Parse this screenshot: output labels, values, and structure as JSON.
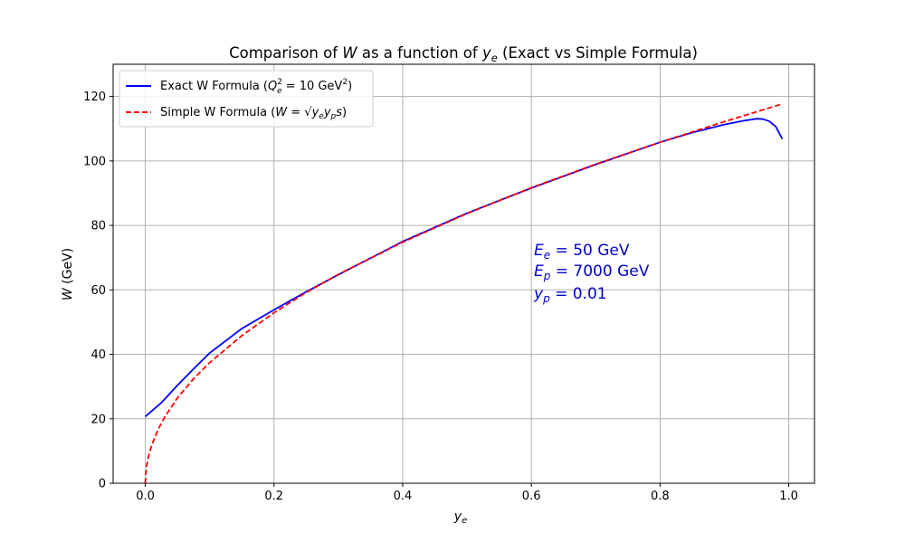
{
  "chart_data": {
    "type": "line",
    "title": {
      "prefix": "Comparison of ",
      "w": "W",
      "middle": " as a function of ",
      "y": "y",
      "ysub": "e",
      "suffix": " (Exact vs Simple Formula)"
    },
    "xlabel": {
      "base": "y",
      "sub": "e"
    },
    "ylabel": {
      "italic": "W",
      "rest": " (GeV)"
    },
    "xlim": [
      -0.05,
      1.04
    ],
    "ylim": [
      0,
      130
    ],
    "x_ticks": [
      0.0,
      0.2,
      0.4,
      0.6,
      0.8,
      1.0
    ],
    "x_tick_labels": [
      "0.0",
      "0.2",
      "0.4",
      "0.6",
      "0.8",
      "1.0"
    ],
    "y_ticks": [
      0,
      20,
      40,
      60,
      80,
      100,
      120
    ],
    "y_tick_labels": [
      "0",
      "20",
      "40",
      "60",
      "80",
      "100",
      "120"
    ],
    "grid": true,
    "legend_position": "top-left",
    "legend": [
      {
        "prefix": "Exact W Formula (",
        "var": "Q",
        "sup": "2",
        "sub": "e",
        "rest": " = 10 GeV",
        "unit_sup": "2",
        "close": ")"
      },
      {
        "prefix": "Simple W Formula (",
        "var": "W",
        "eq": " = √",
        "radicand": "y",
        "sub1": "e",
        "y2": "y",
        "sub2": "p",
        "s": "s",
        "close": ")"
      }
    ],
    "annotation": {
      "line1": {
        "var": "E",
        "sub": "e",
        "text": " = 50 GeV"
      },
      "line2": {
        "var": "E",
        "sub": "p",
        "text": " = 7000 GeV"
      },
      "line3": {
        "var": "y",
        "sub": "p",
        "text": " = 0.01"
      }
    },
    "series": [
      {
        "name": "Exact W Formula",
        "color": "#0000ff",
        "dash": "solid",
        "x": [
          0.0,
          0.025,
          0.05,
          0.075,
          0.1,
          0.15,
          0.2,
          0.25,
          0.3,
          0.4,
          0.5,
          0.6,
          0.7,
          0.8,
          0.85,
          0.9,
          0.93,
          0.95,
          0.96,
          0.97,
          0.98,
          0.99
        ],
        "y": [
          20.7,
          25.0,
          30.4,
          35.5,
          40.4,
          48.0,
          53.8,
          59.4,
          64.7,
          75.0,
          83.8,
          91.6,
          98.9,
          105.8,
          108.8,
          111.3,
          112.5,
          113.1,
          113.0,
          112.3,
          110.6,
          106.8
        ]
      },
      {
        "name": "Simple W Formula",
        "color": "#ff0000",
        "dash": "dashed",
        "x": [
          0.0,
          0.0005,
          0.002,
          0.005,
          0.01,
          0.02,
          0.03,
          0.05,
          0.075,
          0.1,
          0.15,
          0.2,
          0.25,
          0.3,
          0.4,
          0.5,
          0.6,
          0.7,
          0.8,
          0.9,
          0.99
        ],
        "y": [
          0.0,
          2.6,
          5.3,
          8.4,
          11.8,
          16.7,
          20.5,
          26.5,
          32.4,
          37.4,
          45.8,
          52.9,
          59.2,
          64.8,
          74.8,
          83.7,
          91.7,
          99.0,
          105.8,
          112.2,
          117.7
        ]
      }
    ]
  }
}
